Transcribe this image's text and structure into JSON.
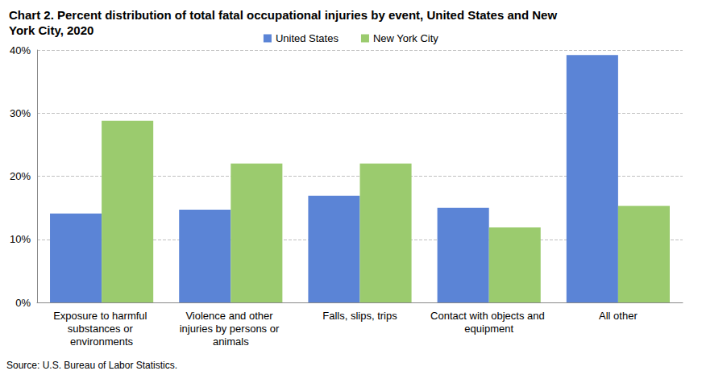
{
  "chart_data": {
    "type": "bar",
    "title": "Chart 2. Percent distribution of total fatal occupational injuries by event, United States and New York City, 2020",
    "source": "Source: U.S. Bureau of Labor Statistics.",
    "categories": [
      "Exposure to harmful substances or environments",
      "Violence and other injuries by persons or animals",
      "Falls, slips, trips",
      "Contact with objects and equipment",
      "All other"
    ],
    "series": [
      {
        "name": "United States",
        "color": "#5b84d6",
        "values": [
          14.1,
          14.7,
          16.9,
          15.0,
          39.2
        ]
      },
      {
        "name": "New York City",
        "color": "#9bcb6e",
        "values": [
          28.8,
          22.0,
          22.0,
          11.9,
          15.3
        ]
      }
    ],
    "ylim": [
      0,
      40
    ],
    "yticks": [
      {
        "value": 0,
        "label": "0%"
      },
      {
        "value": 10,
        "label": "10%"
      },
      {
        "value": 20,
        "label": "20%"
      },
      {
        "value": 30,
        "label": "30%"
      },
      {
        "value": 40,
        "label": "40%"
      }
    ],
    "grid": true,
    "legend": "top"
  }
}
